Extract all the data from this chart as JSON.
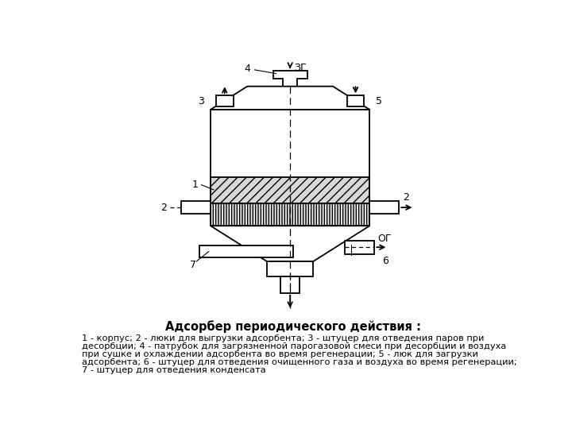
{
  "title": "Адсорбер периодического действия :",
  "caption_line1": "1 - корпус; 2 - люки для выгрузки адсорбента; 3 - штуцер для отведения паров при",
  "caption_line2": "десорбции; 4 - патрубок для загрязненной парогазовой смеси при десорбции и воздуха",
  "caption_line3": "при сушке и охлаждении адсорбента во время регенерации; 5 - люк для загрузки",
  "caption_line4": "адсорбента; 6 - штуцер для отведения очищенного газа и воздуха во время регенерации;",
  "caption_line5": "7 - штуцер для отведения конденсата",
  "bg_color": "#ffffff",
  "line_color": "#000000"
}
